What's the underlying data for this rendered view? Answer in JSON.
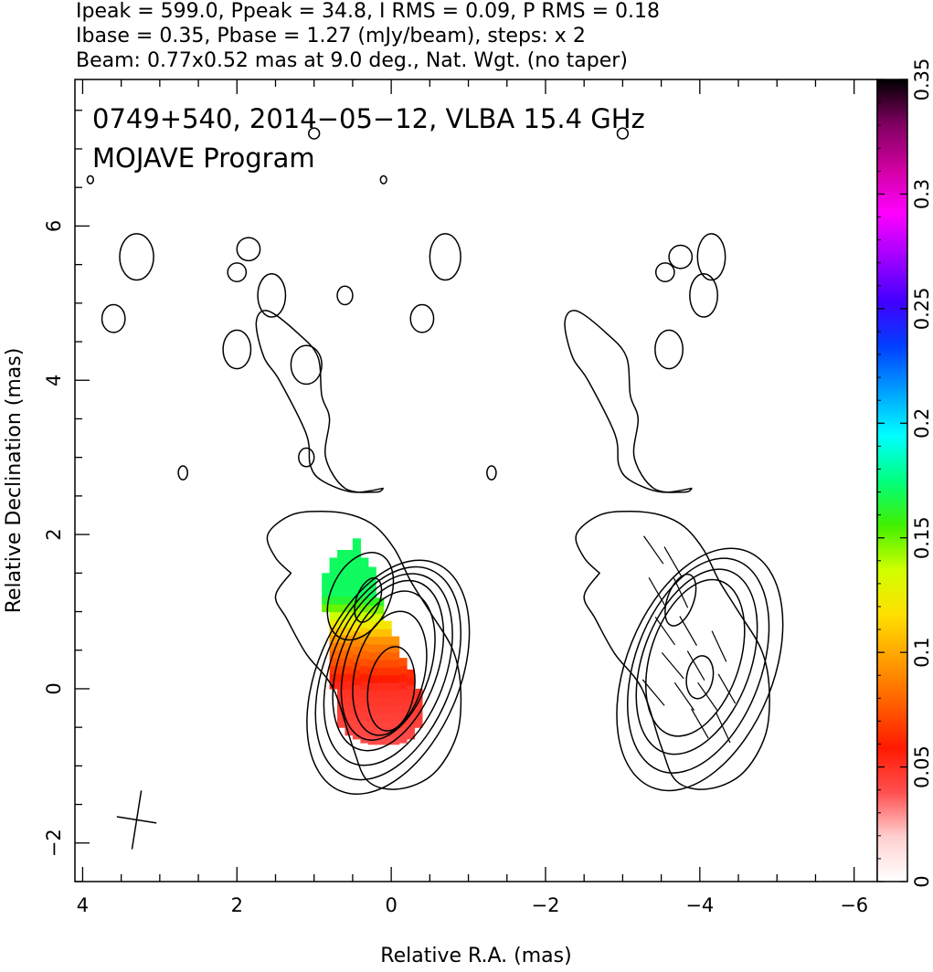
{
  "header": {
    "line1": "Ipeak = 599.0, Ppeak = 34.8, I RMS = 0.09, P RMS = 0.18",
    "line2": "Ibase = 0.35, Pbase = 1.27 (mJy/beam), steps: x 2",
    "line3": "Beam: 0.77x0.52 mas at 9.0 deg., Nat. Wgt. (no taper)"
  },
  "plot": {
    "title_line1": "0749+540, 2014−05−12, VLBA 15.4 GHz",
    "title_line2": "MOJAVE Program",
    "xlabel": "Relative R.A. (mas)",
    "ylabel": "Relative Declination (mas)"
  },
  "chart_data": {
    "type": "heatmap",
    "title": "0749+540, 2014-05-12, VLBA 15.4 GHz",
    "subtitle": "MOJAVE Program",
    "xlabel": "Relative R.A. (mas)",
    "ylabel": "Relative Declination (mas)",
    "xlim": [
      4.1,
      -6.3
    ],
    "ylim": [
      -2.5,
      7.9
    ],
    "x_ticks": [
      4,
      2,
      0,
      -2,
      -4,
      -6
    ],
    "x_tick_labels": [
      "4",
      "2",
      "0",
      "−2",
      "−4",
      "−6"
    ],
    "y_ticks": [
      -2,
      0,
      2,
      4,
      6
    ],
    "y_tick_labels": [
      "−2",
      "0",
      "2",
      "4",
      "6"
    ],
    "colorbar": {
      "min": 0,
      "max": 0.35,
      "ticks": [
        0,
        0.05,
        0.1,
        0.15,
        0.2,
        0.25,
        0.3,
        0.35
      ],
      "tick_labels": [
        "0",
        "0.05",
        "0.1",
        "0.15",
        "0.2",
        "0.25",
        "0.3",
        "0.35"
      ],
      "colors": [
        "#ffffff",
        "#ffd0d0",
        "#ff5050",
        "#ff1a00",
        "#ff6000",
        "#ffa000",
        "#ffe000",
        "#d0ff00",
        "#40f000",
        "#00ff80",
        "#00ffff",
        "#00a0ff",
        "#0040ff",
        "#4000ff",
        "#a000ff",
        "#ff00ff",
        "#d000a0",
        "#800060",
        "#000000"
      ]
    },
    "polarization_map": {
      "columns_x": [
        0.85,
        0.75,
        0.65,
        0.55,
        0.45,
        0.35,
        0.25,
        0.15,
        0.05,
        -0.05,
        -0.15,
        -0.25,
        -0.35
      ],
      "column_ranges": [
        [
          1.0,
          1.5
        ],
        [
          0.0,
          1.7
        ],
        [
          -0.5,
          1.8
        ],
        [
          -0.6,
          1.8
        ],
        [
          -0.65,
          1.9
        ],
        [
          -0.7,
          1.7
        ],
        [
          -0.72,
          1.5
        ],
        [
          -0.72,
          1.1
        ],
        [
          -0.72,
          0.8
        ],
        [
          -0.72,
          0.6
        ],
        [
          -0.7,
          0.4
        ],
        [
          -0.65,
          0.2
        ],
        [
          -0.5,
          0.0
        ]
      ],
      "fractional_polarization": [
        {
          "dec": -0.7,
          "value": 0.04
        },
        {
          "dec": 0.0,
          "value": 0.05
        },
        {
          "dec": 0.6,
          "value": 0.09
        },
        {
          "dec": 0.9,
          "value": 0.13
        },
        {
          "dec": 1.2,
          "value": 0.17
        },
        {
          "dec": 1.8,
          "value": 0.17
        }
      ]
    },
    "contour_levels_mJy_per_beam": [
      0.35,
      0.7,
      1.4,
      2.8,
      5.6,
      11.2,
      22.4,
      44.8,
      89.6,
      179.2,
      358.4
    ],
    "left_panel": {
      "core": {
        "x": 0.0,
        "y": 0.0
      },
      "secondary_peak": {
        "x": 0.35,
        "y": 1.2
      },
      "contours": [
        {
          "cx": 0.04,
          "cy": 0.15,
          "rx": 0.92,
          "ry": 1.6,
          "angle_deg": 23
        },
        {
          "cx": 0.04,
          "cy": 0.2,
          "rx": 0.83,
          "ry": 1.45,
          "angle_deg": 22
        },
        {
          "cx": 0.04,
          "cy": 0.25,
          "rx": 0.74,
          "ry": 1.3,
          "angle_deg": 21
        },
        {
          "cx": 0.04,
          "cy": 0.3,
          "rx": 0.64,
          "ry": 1.15,
          "angle_deg": 20
        },
        {
          "cx": 0.04,
          "cy": 0.3,
          "rx": 0.55,
          "ry": 1.0,
          "angle_deg": 18
        },
        {
          "cx": 0.02,
          "cy": 0.2,
          "rx": 0.45,
          "ry": 0.82,
          "angle_deg": 14
        },
        {
          "cx": 0.0,
          "cy": 0.0,
          "rx": 0.3,
          "ry": 0.55,
          "angle_deg": 8
        }
      ],
      "inner_peak_contours": [
        {
          "cx": 0.4,
          "cy": 1.2,
          "rx": 0.38,
          "ry": 0.6,
          "angle_deg": 25
        },
        {
          "cx": 0.3,
          "cy": 1.15,
          "rx": 0.15,
          "ry": 0.3,
          "angle_deg": 20
        }
      ],
      "outer_contour": [
        [
          1.3,
          1.5
        ],
        [
          1.5,
          1.7
        ],
        [
          1.6,
          2.0
        ],
        [
          1.3,
          2.25
        ],
        [
          0.9,
          2.3
        ],
        [
          0.5,
          2.25
        ],
        [
          0.2,
          2.1
        ],
        [
          -0.05,
          1.8
        ],
        [
          -0.25,
          1.4
        ],
        [
          -0.5,
          1.0
        ],
        [
          -0.8,
          0.5
        ],
        [
          -0.9,
          0.0
        ],
        [
          -0.85,
          -0.6
        ],
        [
          -0.55,
          -1.1
        ],
        [
          -0.1,
          -1.3
        ],
        [
          0.3,
          -1.2
        ],
        [
          0.5,
          -0.75
        ],
        [
          0.75,
          0.0
        ],
        [
          1.1,
          0.45
        ],
        [
          1.35,
          0.9
        ],
        [
          1.5,
          1.2
        ],
        [
          1.3,
          1.5
        ]
      ],
      "extended_jet_contour": [
        [
          0.1,
          2.6
        ],
        [
          0.2,
          2.55
        ],
        [
          0.6,
          2.6
        ],
        [
          0.85,
          3.0
        ],
        [
          0.8,
          3.5
        ],
        [
          0.9,
          3.8
        ],
        [
          0.95,
          4.3
        ],
        [
          1.2,
          4.6
        ],
        [
          1.6,
          4.9
        ],
        [
          1.75,
          4.75
        ],
        [
          1.65,
          4.3
        ],
        [
          1.45,
          4.0
        ],
        [
          1.1,
          3.3
        ],
        [
          1.05,
          2.9
        ],
        [
          0.9,
          2.7
        ],
        [
          0.5,
          2.55
        ],
        [
          0.1,
          2.6
        ]
      ],
      "islands": [
        [
          3.3,
          5.6,
          0.22,
          0.3
        ],
        [
          3.6,
          4.8,
          0.15,
          0.18
        ],
        [
          2.0,
          5.4,
          0.12,
          0.12
        ],
        [
          1.85,
          5.7,
          0.15,
          0.15
        ],
        [
          1.55,
          5.1,
          0.18,
          0.28
        ],
        [
          2.0,
          4.4,
          0.18,
          0.25
        ],
        [
          1.1,
          4.2,
          0.2,
          0.25
        ],
        [
          1.1,
          3.0,
          0.1,
          0.12
        ],
        [
          0.6,
          5.1,
          0.1,
          0.12
        ],
        [
          -0.7,
          5.6,
          0.2,
          0.3
        ],
        [
          -0.4,
          4.8,
          0.15,
          0.18
        ],
        [
          2.7,
          2.8,
          0.06,
          0.09
        ],
        [
          1.0,
          7.2,
          0.07,
          0.07
        ],
        [
          0.1,
          6.6,
          0.04,
          0.05
        ],
        [
          3.9,
          6.6,
          0.04,
          0.05
        ]
      ]
    },
    "right_panel": {
      "offset_x": -4.0,
      "contours": [
        {
          "cx": -4.0,
          "cy": 0.25,
          "rx": 0.95,
          "ry": 1.65,
          "angle_deg": 22
        },
        {
          "cx": -3.98,
          "cy": 0.3,
          "rx": 0.82,
          "ry": 1.45,
          "angle_deg": 20
        },
        {
          "cx": -3.96,
          "cy": 0.35,
          "rx": 0.7,
          "ry": 1.25,
          "angle_deg": 20
        },
        {
          "cx": -3.94,
          "cy": 0.4,
          "rx": 0.58,
          "ry": 1.05,
          "angle_deg": 18
        }
      ],
      "peak_contours": [
        {
          "cx": -3.75,
          "cy": 1.15,
          "rx": 0.17,
          "ry": 0.35,
          "angle_deg": 20
        },
        {
          "cx": -4.0,
          "cy": 0.15,
          "rx": 0.17,
          "ry": 0.28,
          "angle_deg": 10
        }
      ],
      "evpa_vectors": [
        {
          "x": -3.4,
          "y": 1.8,
          "angle_deg": -35
        },
        {
          "x": -3.65,
          "y": 1.65,
          "angle_deg": -30
        },
        {
          "x": -3.45,
          "y": 1.25,
          "angle_deg": -30
        },
        {
          "x": -3.75,
          "y": 1.25,
          "angle_deg": -25
        },
        {
          "x": -3.55,
          "y": 0.75,
          "angle_deg": -35
        },
        {
          "x": -3.85,
          "y": 0.75,
          "angle_deg": -30
        },
        {
          "x": -3.65,
          "y": 0.3,
          "angle_deg": -40
        },
        {
          "x": -3.95,
          "y": 0.3,
          "angle_deg": -30
        },
        {
          "x": -4.25,
          "y": 0.55,
          "angle_deg": -25
        },
        {
          "x": -3.8,
          "y": -0.1,
          "angle_deg": -35
        },
        {
          "x": -4.1,
          "y": -0.1,
          "angle_deg": -35
        },
        {
          "x": -4.35,
          "y": 0.0,
          "angle_deg": -30
        },
        {
          "x": -4.0,
          "y": -0.45,
          "angle_deg": -30
        },
        {
          "x": -4.3,
          "y": -0.5,
          "angle_deg": -25
        },
        {
          "x": -3.4,
          "y": -0.05,
          "angle_deg": -40
        }
      ],
      "islands": [
        [
          -3.75,
          5.6,
          0.15,
          0.15
        ],
        [
          -3.55,
          5.4,
          0.12,
          0.12
        ],
        [
          -4.05,
          5.1,
          0.18,
          0.28
        ],
        [
          -3.6,
          4.4,
          0.18,
          0.25
        ],
        [
          -4.15,
          5.6,
          0.18,
          0.3
        ],
        [
          -1.3,
          2.8,
          0.06,
          0.09
        ],
        [
          -3.0,
          7.2,
          0.07,
          0.07
        ]
      ]
    },
    "beam": {
      "major_mas": 0.77,
      "minor_mas": 0.52,
      "pa_deg": 9.0,
      "x": 3.3,
      "y": -1.7
    }
  }
}
